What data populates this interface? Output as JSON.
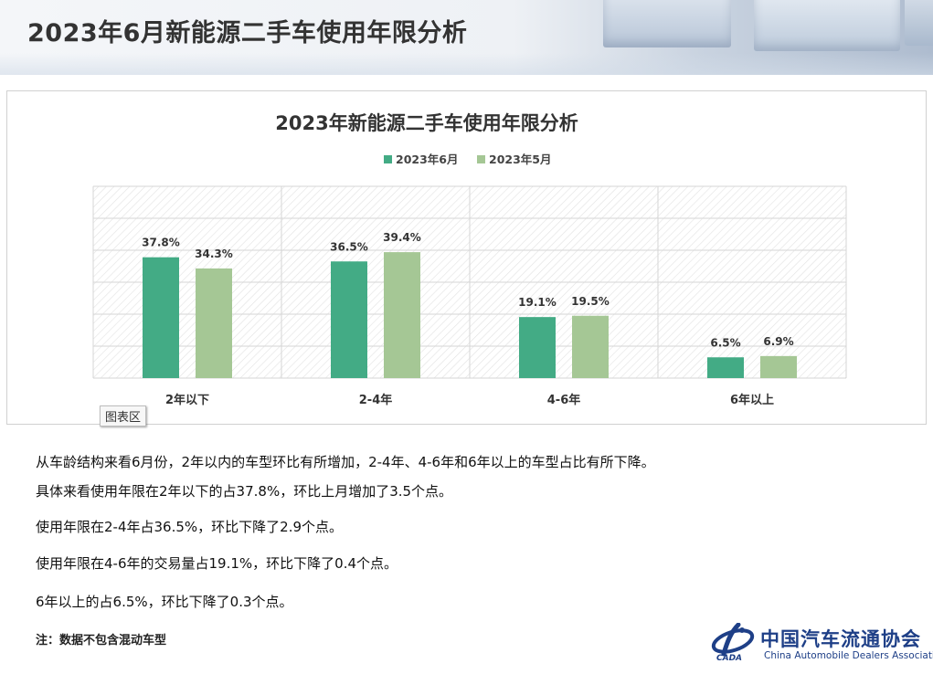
{
  "header": {
    "title": "2023年6月新能源二手车使用年限分析"
  },
  "chart_data": {
    "type": "bar",
    "title": "2023年新能源二手车使用年限分析",
    "categories": [
      "2年以下",
      "2-4年",
      "4-6年",
      "6年以上"
    ],
    "series": [
      {
        "name": "2023年6月",
        "values": [
          37.8,
          36.5,
          19.1,
          6.5
        ],
        "labels": [
          "37.8%",
          "36.5%",
          "19.1%",
          "6.5%"
        ],
        "color": "#43ab85"
      },
      {
        "name": "2023年5月",
        "values": [
          34.3,
          39.4,
          19.5,
          6.9
        ],
        "labels": [
          "34.3%",
          "39.4%",
          "19.5%",
          "6.9%"
        ],
        "color": "#a5c795"
      }
    ],
    "ylim": [
      0,
      60
    ],
    "grid": true,
    "legend": "top-center"
  },
  "chart_tooltip": "图表区",
  "paragraphs": [
    "从车龄结构来看6月份，2年以内的车型环比有所增加，2-4年、4-6年和6年以上的车型占比有所下降。",
    "具体来看使用年限在2年以下的占37.8%，环比上月增加了3.5个点。",
    "使用年限在2-4年占36.5%，环比下降了2.9个点。",
    "使用年限在4-6年的交易量占19.1%，环比下降了0.4个点。",
    "6年以上的占6.5%，环比下降了0.3个点。"
  ],
  "note": "注：数据不包含混动车型",
  "logo": {
    "name_zh": "中国汽车流通协会",
    "name_en": "China Automobile Dealers Association",
    "abbr": "CADA"
  }
}
